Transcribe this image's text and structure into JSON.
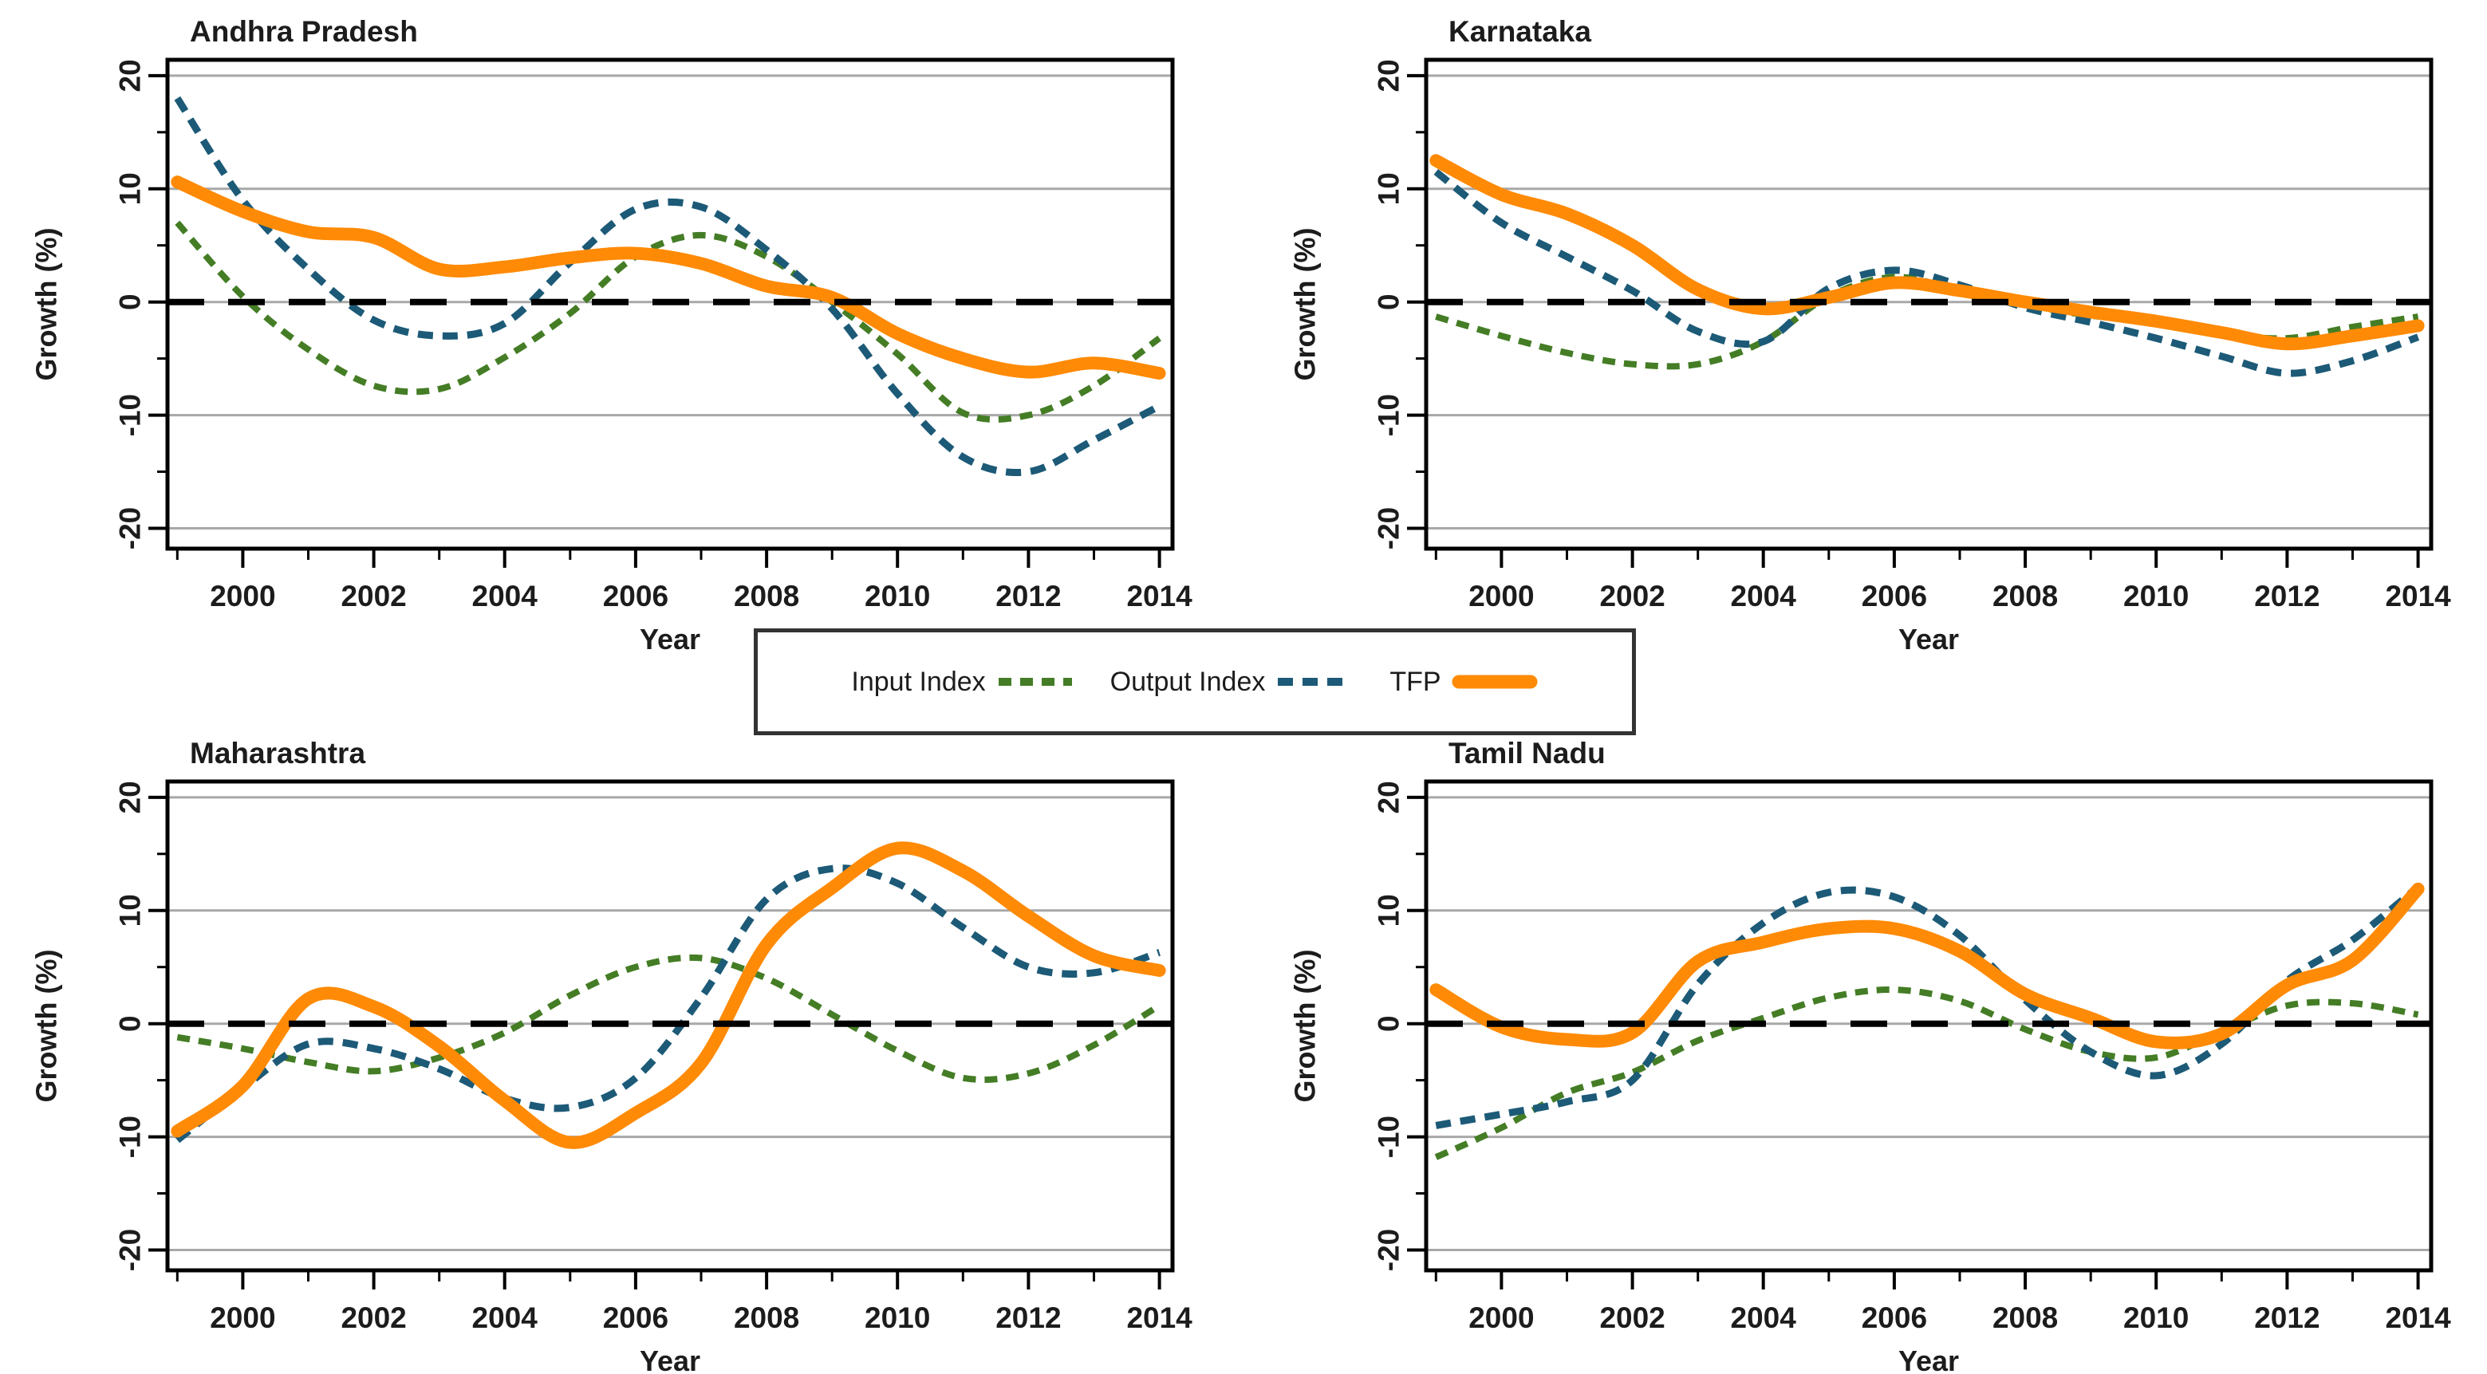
{
  "page": {
    "background": "#ffffff"
  },
  "legend": {
    "items": [
      {
        "label": "Input Index",
        "series": "input"
      },
      {
        "label": "Output Index",
        "series": "output"
      },
      {
        "label": "TFP",
        "series": "tfp"
      }
    ]
  },
  "styles": {
    "series": {
      "input": {
        "color": "#447D25",
        "dash": "16 11",
        "width": 8
      },
      "output": {
        "color": "#1C5A77",
        "dash": "19 12",
        "width": 9
      },
      "tfp": {
        "color": "#FF8A05",
        "dash": "",
        "width": 16
      }
    },
    "grid_color": "#A8A8A8",
    "zero_line_color": "#000000",
    "zero_line_dash": "46 30",
    "axis_color": "#000000",
    "title_color": "#3B3B3B",
    "tick_label_color": "#1C1C1C"
  },
  "axes": {
    "xlabel": "Year",
    "ylabel": "Growth (%)",
    "x_major_ticks": [
      2000,
      2002,
      2004,
      2006,
      2008,
      2010,
      2012,
      2014
    ],
    "x_minor_ticks": [
      1999,
      2001,
      2003,
      2005,
      2007,
      2009,
      2011,
      2013
    ],
    "y_major_ticks": [
      20,
      10,
      0,
      -10,
      -20
    ],
    "y_minor_ticks": [
      15,
      5,
      -5,
      -15
    ],
    "xlim": [
      1998.85,
      2014.2
    ],
    "ylim": [
      -21.8,
      21.4
    ],
    "zero_line": 0,
    "grid": true,
    "legend_position": "center-between-rows"
  },
  "chart_data": [
    {
      "type": "line",
      "title": "Andhra Pradesh",
      "xlabel": "Year",
      "ylabel": "Growth (%)",
      "ylim": [
        -20,
        20
      ],
      "x": [
        1999,
        2000,
        2001,
        2002,
        2003,
        2004,
        2005,
        2006,
        2007,
        2008,
        2009,
        2010,
        2011,
        2012,
        2013,
        2014
      ],
      "series": [
        {
          "name": "Input Index",
          "key": "input",
          "values": [
            7,
            0.5,
            -4.2,
            -7.4,
            -7.7,
            -4.9,
            -1.0,
            4.0,
            5.9,
            4.0,
            0,
            -4.6,
            -9.8,
            -10,
            -7.4,
            -3.2
          ]
        },
        {
          "name": "Output Index",
          "key": "output",
          "values": [
            18,
            9,
            2.9,
            -1.6,
            -3.0,
            -1.9,
            3.5,
            8.2,
            8.4,
            4.6,
            -0.6,
            -8.1,
            -13.7,
            -15,
            -12.2,
            -9.2
          ]
        },
        {
          "name": "TFP",
          "key": "tfp",
          "values": [
            10.6,
            8,
            6.2,
            5.7,
            2.9,
            3.1,
            3.9,
            4.3,
            3.4,
            1.4,
            0.4,
            -2.8,
            -5,
            -6.2,
            -5.4,
            -6.3
          ]
        }
      ]
    },
    {
      "type": "line",
      "title": "Karnataka",
      "xlabel": "Year",
      "ylabel": "Growth (%)",
      "ylim": [
        -20,
        20
      ],
      "x": [
        1999,
        2000,
        2001,
        2002,
        2003,
        2004,
        2005,
        2006,
        2007,
        2008,
        2009,
        2010,
        2011,
        2012,
        2013,
        2014
      ],
      "series": [
        {
          "name": "Input Index",
          "key": "input",
          "values": [
            -1.3,
            -3,
            -4.5,
            -5.5,
            -5.5,
            -3.5,
            0.5,
            2.2,
            1,
            -0.3,
            -1.2,
            -1.8,
            -2.8,
            -3.2,
            -2.2,
            -1.3
          ]
        },
        {
          "name": "Output Index",
          "key": "output",
          "values": [
            11.5,
            7,
            4,
            1,
            -2.6,
            -3.5,
            1.2,
            2.8,
            1.5,
            -0.5,
            -1.8,
            -3.2,
            -4.8,
            -6.3,
            -5.2,
            -3.1
          ]
        },
        {
          "name": "TFP",
          "key": "tfp",
          "values": [
            12.5,
            9.5,
            7.8,
            5,
            1.1,
            -0.6,
            0.4,
            1.7,
            1,
            0,
            -0.9,
            -1.7,
            -2.7,
            -3.7,
            -3,
            -2.1
          ]
        }
      ]
    },
    {
      "type": "line",
      "title": "Maharashtra",
      "xlabel": "Year",
      "ylabel": "Growth (%)",
      "ylim": [
        -20,
        20
      ],
      "x": [
        1999,
        2000,
        2001,
        2002,
        2003,
        2004,
        2005,
        2006,
        2007,
        2008,
        2009,
        2010,
        2011,
        2012,
        2013,
        2014
      ],
      "series": [
        {
          "name": "Input Index",
          "key": "input",
          "values": [
            -1.2,
            -2.2,
            -3.4,
            -4.2,
            -3.0,
            -0.8,
            2.5,
            5.0,
            5.8,
            4.0,
            0.8,
            -2.4,
            -4.8,
            -4.4,
            -1.9,
            1.6
          ]
        },
        {
          "name": "Output Index",
          "key": "output",
          "values": [
            -10.3,
            -5.7,
            -1.8,
            -2.2,
            -4.0,
            -6.6,
            -7.4,
            -4.8,
            2.3,
            11,
            13.7,
            12.4,
            8.5,
            5.0,
            4.5,
            6.3
          ]
        },
        {
          "name": "TFP",
          "key": "tfp",
          "values": [
            -9.5,
            -5.5,
            2.2,
            1.5,
            -2.0,
            -6.8,
            -10.5,
            -7.9,
            -3.5,
            7.0,
            12.0,
            15.5,
            13.5,
            9.5,
            6.0,
            4.7
          ]
        }
      ]
    },
    {
      "type": "line",
      "title": "Tamil Nadu",
      "xlabel": "Year",
      "ylabel": "Growth (%)",
      "ylim": [
        -20,
        20
      ],
      "x": [
        1999,
        2000,
        2001,
        2002,
        2003,
        2004,
        2005,
        2006,
        2007,
        2008,
        2009,
        2010,
        2011,
        2012,
        2013,
        2014
      ],
      "series": [
        {
          "name": "Input Index",
          "key": "input",
          "values": [
            -11.8,
            -9.2,
            -6.1,
            -4.3,
            -1.5,
            0.5,
            2.3,
            3.0,
            2.0,
            -0.5,
            -2.5,
            -3.0,
            -0.7,
            1.6,
            1.8,
            0.8
          ]
        },
        {
          "name": "Output Index",
          "key": "output",
          "values": [
            -9,
            -8,
            -6.9,
            -5,
            3.5,
            8.9,
            11.6,
            11.2,
            7.8,
            2.1,
            -2.5,
            -4.6,
            -1.8,
            3.8,
            7.4,
            12.1
          ]
        },
        {
          "name": "TFP",
          "key": "tfp",
          "values": [
            3,
            -0.3,
            -1.4,
            -0.8,
            5.5,
            7.2,
            8.4,
            8.4,
            6.4,
            2.6,
            0.5,
            -1.6,
            -0.9,
            3.4,
            5.6,
            11.9
          ]
        }
      ]
    }
  ]
}
